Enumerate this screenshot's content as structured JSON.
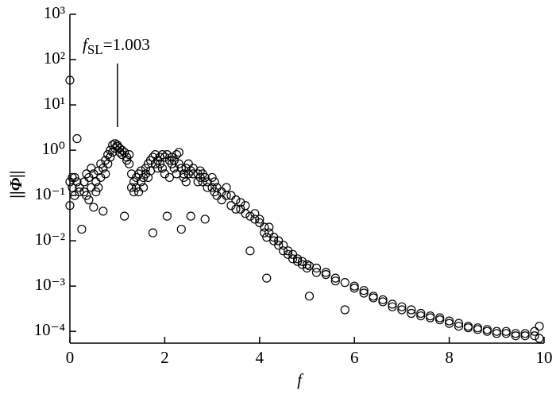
{
  "chart_data": {
    "type": "scatter",
    "x_label": "f",
    "y_label": "||Φ||",
    "annotation": {
      "symbol": "f",
      "subscript": "SL",
      "text": "=1.003",
      "x": 1.003
    },
    "xlim": [
      0,
      10
    ],
    "xticks": [
      0,
      2,
      4,
      6,
      8,
      10
    ],
    "ylim": [
      5.5e-05,
      1000
    ],
    "log_y": true,
    "yticks": [
      {
        "value": 1000,
        "label": "10³"
      },
      {
        "value": 100,
        "label": "10²"
      },
      {
        "value": 10,
        "label": "10¹"
      },
      {
        "value": 1,
        "label": "10⁰"
      },
      {
        "value": 0.1,
        "label": "10⁻¹"
      },
      {
        "value": 0.01,
        "label": "10⁻²"
      },
      {
        "value": 0.001,
        "label": "10⁻³"
      },
      {
        "value": 0.0001,
        "label": "10⁻⁴"
      }
    ],
    "series": [
      {
        "color": "#000000",
        "x": [
          0,
          0,
          0,
          0.05,
          0.05,
          0.1,
          0.1,
          0.15,
          0.15,
          0.2,
          0.2,
          0.25,
          0.3,
          0.3,
          0.35,
          0.35,
          0.4,
          0.4,
          0.45,
          0.45,
          0.5,
          0.5,
          0.55,
          0.55,
          0.6,
          0.6,
          0.65,
          0.65,
          0.7,
          0.7,
          0.75,
          0.75,
          0.8,
          0.8,
          0.85,
          0.85,
          0.9,
          0.9,
          0.95,
          0.95,
          1.0,
          1.0,
          1.05,
          1.05,
          1.1,
          1.1,
          1.15,
          1.15,
          1.2,
          1.2,
          1.25,
          1.25,
          1.3,
          1.3,
          1.35,
          1.35,
          1.4,
          1.4,
          1.45,
          1.45,
          1.5,
          1.5,
          1.55,
          1.55,
          1.6,
          1.6,
          1.65,
          1.65,
          1.7,
          1.7,
          1.75,
          1.75,
          1.8,
          1.8,
          1.85,
          1.85,
          1.9,
          1.9,
          1.95,
          1.95,
          2.0,
          2.0,
          2.05,
          2.05,
          2.1,
          2.1,
          2.15,
          2.15,
          2.2,
          2.2,
          2.25,
          2.25,
          2.3,
          2.3,
          2.35,
          2.35,
          2.4,
          2.4,
          2.45,
          2.45,
          2.5,
          2.5,
          2.55,
          2.55,
          2.6,
          2.6,
          2.7,
          2.7,
          2.75,
          2.75,
          2.8,
          2.8,
          2.85,
          2.85,
          2.9,
          2.9,
          3.0,
          3.0,
          3.05,
          3.05,
          3.1,
          3.1,
          3.2,
          3.2,
          3.3,
          3.3,
          3.4,
          3.4,
          3.5,
          3.5,
          3.6,
          3.6,
          3.7,
          3.7,
          3.8,
          3.8,
          3.9,
          3.9,
          4.0,
          4.0,
          4.1,
          4.1,
          4.15,
          4.15,
          4.2,
          4.2,
          4.3,
          4.3,
          4.4,
          4.4,
          4.5,
          4.5,
          4.6,
          4.6,
          4.7,
          4.7,
          4.8,
          4.8,
          4.9,
          4.9,
          5.0,
          5.0,
          5.05,
          5.05,
          5.2,
          5.2,
          5.4,
          5.4,
          5.6,
          5.6,
          5.8,
          5.8,
          6.0,
          6.0,
          6.2,
          6.2,
          6.4,
          6.4,
          6.6,
          6.6,
          6.8,
          6.8,
          7.0,
          7.0,
          7.2,
          7.2,
          7.4,
          7.4,
          7.6,
          7.6,
          7.8,
          7.8,
          8.0,
          8.0,
          8.2,
          8.2,
          8.4,
          8.4,
          8.6,
          8.6,
          8.8,
          8.8,
          9.0,
          9.0,
          9.2,
          9.2,
          9.4,
          9.4,
          9.6,
          9.6,
          9.8,
          9.8,
          9.9,
          9.9
        ],
        "values": [
          35,
          0.06,
          0.2,
          0.15,
          0.25,
          0.25,
          0.1,
          1.8,
          0.2,
          0.15,
          0.12,
          0.018,
          0.12,
          0.2,
          0.1,
          0.3,
          0.25,
          0.08,
          0.4,
          0.15,
          0.055,
          0.3,
          0.2,
          0.12,
          0.35,
          0.15,
          0.5,
          0.25,
          0.045,
          0.4,
          0.6,
          0.3,
          0.8,
          0.5,
          1.0,
          0.7,
          1.3,
          0.9,
          1.4,
          1.1,
          1.2,
          1.3,
          1.1,
          0.9,
          1.0,
          0.8,
          0.035,
          0.9,
          0.7,
          0.6,
          0.8,
          0.5,
          0.15,
          0.3,
          0.12,
          0.2,
          0.25,
          0.15,
          0.3,
          0.12,
          0.2,
          0.35,
          0.15,
          0.25,
          0.4,
          0.3,
          0.5,
          0.25,
          0.6,
          0.35,
          0.015,
          0.7,
          0.5,
          0.8,
          0.6,
          0.4,
          0.7,
          0.5,
          0.8,
          0.4,
          0.7,
          0.3,
          0.035,
          0.8,
          0.6,
          0.25,
          0.5,
          0.7,
          0.4,
          0.6,
          0.8,
          0.3,
          0.9,
          0.5,
          0.018,
          0.4,
          0.25,
          0.3,
          0.4,
          0.2,
          0.3,
          0.5,
          0.035,
          0.35,
          0.3,
          0.4,
          0.3,
          0.2,
          0.35,
          0.25,
          0.2,
          0.3,
          0.03,
          0.25,
          0.2,
          0.15,
          0.25,
          0.15,
          0.12,
          0.2,
          0.15,
          0.1,
          0.12,
          0.08,
          0.1,
          0.15,
          0.06,
          0.1,
          0.08,
          0.05,
          0.05,
          0.07,
          0.04,
          0.06,
          0.006,
          0.035,
          0.03,
          0.04,
          0.025,
          0.03,
          0.02,
          0.015,
          0.0015,
          0.012,
          0.015,
          0.02,
          0.012,
          0.01,
          0.01,
          0.008,
          0.008,
          0.006,
          0.006,
          0.005,
          0.005,
          0.004,
          0.004,
          0.0035,
          0.0035,
          0.003,
          0.003,
          0.0025,
          0.0006,
          0.0028,
          0.0025,
          0.002,
          0.002,
          0.0018,
          0.0015,
          0.0013,
          0.0012,
          0.0003,
          0.001,
          0.0009,
          0.0008,
          0.0007,
          0.0006,
          0.00055,
          0.0005,
          0.00045,
          0.0004,
          0.00035,
          0.00035,
          0.0003,
          0.0003,
          0.00025,
          0.00025,
          0.00022,
          0.00022,
          0.0002,
          0.0002,
          0.00018,
          0.00017,
          0.00015,
          0.00015,
          0.00013,
          0.00013,
          0.00012,
          0.00012,
          0.00011,
          0.00011,
          0.0001,
          0.0001,
          9e-05,
          0.0001,
          9e-05,
          9e-05,
          8e-05,
          9e-05,
          8e-05,
          0.0001,
          8e-05,
          0.00013,
          7e-05
        ]
      }
    ]
  }
}
